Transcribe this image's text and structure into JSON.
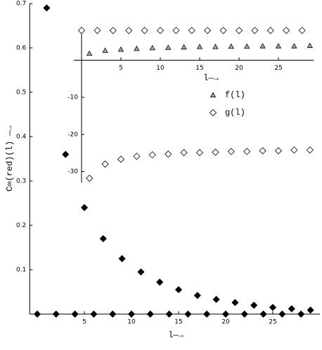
{
  "chart_data": [
    {
      "type": "scatter",
      "xlabel": "l—→",
      "ylabel": "C∞(red)(l) —→",
      "x": [
        0,
        1,
        2,
        3,
        4,
        5,
        6,
        7,
        8,
        9,
        10,
        11,
        12,
        13,
        14,
        15,
        16,
        17,
        18,
        19,
        20,
        21,
        22,
        23,
        24,
        25,
        26,
        27,
        28,
        29
      ],
      "values": [
        0,
        0.69,
        0,
        0.36,
        0,
        0.24,
        0,
        0.17,
        0,
        0.125,
        0,
        0.095,
        0,
        0.072,
        0,
        0.055,
        0,
        0.042,
        0,
        0.033,
        0,
        0.026,
        0,
        0.02,
        0,
        0.015,
        0,
        0.012,
        0,
        0.009
      ],
      "color": "#000000",
      "marker": "diamond",
      "xlim": [
        -0.8,
        30
      ],
      "ylim": [
        0,
        0.7
      ],
      "xticks": [
        5,
        10,
        15,
        20,
        25
      ],
      "yticks": [
        0.1,
        0.2,
        0.3,
        0.4,
        0.5,
        0.6,
        0.7
      ]
    },
    {
      "type": "scatter",
      "xlabel": "l—→",
      "x": [
        0,
        1,
        2,
        3,
        4,
        5,
        6,
        7,
        8,
        9,
        10,
        11,
        12,
        13,
        14,
        15,
        16,
        17,
        18,
        19,
        20,
        21,
        22,
        23,
        24,
        25,
        26,
        27,
        28,
        29
      ],
      "series": [
        {
          "name": "f(l)",
          "color": "#aaaaaa",
          "marker": "triangle",
          "values": [
            null,
            1.8,
            null,
            2.6,
            null,
            2.9,
            null,
            3.1,
            null,
            3.3,
            null,
            3.4,
            null,
            3.5,
            null,
            3.6,
            null,
            3.6,
            null,
            3.7,
            null,
            3.7,
            null,
            3.8,
            null,
            3.8,
            null,
            3.8,
            null,
            3.9
          ]
        },
        {
          "name": "g(l)",
          "color": "#ffffff",
          "marker": "diamond",
          "values": [
            8,
            -31.8,
            8,
            -28,
            8,
            -26.7,
            8,
            -25.9,
            8,
            -25.5,
            8,
            -25.3,
            8,
            -24.9,
            8,
            -24.9,
            8,
            -24.8,
            8,
            -24.6,
            8,
            -24.6,
            8,
            -24.4,
            8,
            -24.4,
            8,
            -24.2,
            8,
            -24.2
          ]
        }
      ],
      "xlim": [
        -1,
        29.5
      ],
      "ylim": [
        -33,
        9
      ],
      "xticks": [
        5,
        10,
        15,
        20,
        25
      ],
      "yticks": [
        -10,
        -20,
        -30
      ]
    }
  ]
}
